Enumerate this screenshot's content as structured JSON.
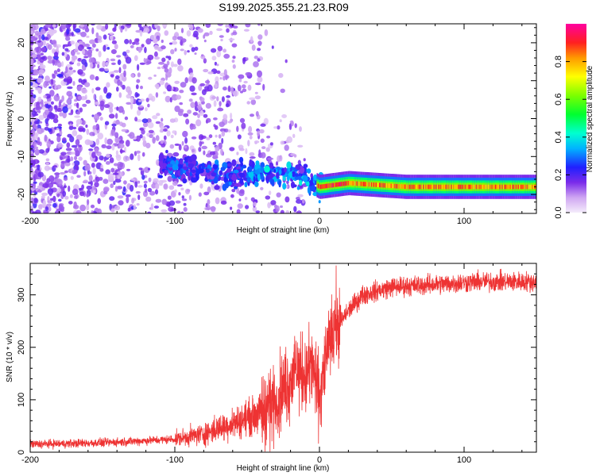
{
  "title": "S199.2025.355.21.23.R09",
  "chart_data": [
    {
      "type": "heatmap",
      "xlabel": "Height of straight line (km)",
      "ylabel": "Frequency (Hz)",
      "xlim": [
        -200,
        150
      ],
      "ylim": [
        -25,
        25
      ],
      "x_ticks": [
        -200,
        -100,
        0,
        100
      ],
      "x_tick_labels": [
        "-200",
        "-100",
        "0",
        "100"
      ],
      "y_ticks": [
        -20,
        -10,
        0,
        10,
        20
      ],
      "y_tick_labels": [
        "-20",
        "-10",
        "0",
        "10",
        "20"
      ],
      "colorbar": {
        "label": "Normalized spectral amplitude",
        "range": [
          0,
          1
        ],
        "ticks": [
          0.0,
          0.2,
          0.4,
          0.6,
          0.8
        ],
        "tick_labels": [
          "0.0",
          "0.2",
          "0.4",
          "0.6",
          "0.8"
        ],
        "colormap": "rainbow (white/violet → blue → cyan → green → yellow → red → magenta)"
      },
      "signal_ridge": [
        {
          "x": -100,
          "freq": -13
        },
        {
          "x": -60,
          "freq": -15
        },
        {
          "x": -40,
          "freq": -14
        },
        {
          "x": -20,
          "freq": -15
        },
        {
          "x": -10,
          "freq": -16
        },
        {
          "x": 0,
          "freq": -18
        },
        {
          "x": 20,
          "freq": -17
        },
        {
          "x": 60,
          "freq": -18
        },
        {
          "x": 100,
          "freq": -18
        },
        {
          "x": 150,
          "freq": -18
        }
      ],
      "grid": false
    },
    {
      "type": "line",
      "xlabel": "Height of straight line (km)",
      "ylabel": "SNR (10 * v/v)",
      "xlim": [
        -200,
        150
      ],
      "ylim": [
        0,
        360
      ],
      "x_ticks": [
        -200,
        -100,
        0,
        100
      ],
      "x_tick_labels": [
        "-200",
        "-100",
        "0",
        "100"
      ],
      "y_ticks": [
        0,
        100,
        200,
        300
      ],
      "y_tick_labels": [
        "0",
        "100",
        "200",
        "300"
      ],
      "color": "#ee3333",
      "series_points": [
        {
          "x": -200,
          "y": 15
        },
        {
          "x": -150,
          "y": 18
        },
        {
          "x": -120,
          "y": 22
        },
        {
          "x": -100,
          "y": 25
        },
        {
          "x": -80,
          "y": 35
        },
        {
          "x": -60,
          "y": 55
        },
        {
          "x": -40,
          "y": 75
        },
        {
          "x": -30,
          "y": 100
        },
        {
          "x": -20,
          "y": 140
        },
        {
          "x": -15,
          "y": 160
        },
        {
          "x": -10,
          "y": 140
        },
        {
          "x": -5,
          "y": 170
        },
        {
          "x": 0,
          "y": 100
        },
        {
          "x": 5,
          "y": 190
        },
        {
          "x": 10,
          "y": 230
        },
        {
          "x": 20,
          "y": 270
        },
        {
          "x": 30,
          "y": 300
        },
        {
          "x": 50,
          "y": 315
        },
        {
          "x": 80,
          "y": 320
        },
        {
          "x": 110,
          "y": 325
        },
        {
          "x": 150,
          "y": 325
        }
      ],
      "grid": false
    }
  ]
}
